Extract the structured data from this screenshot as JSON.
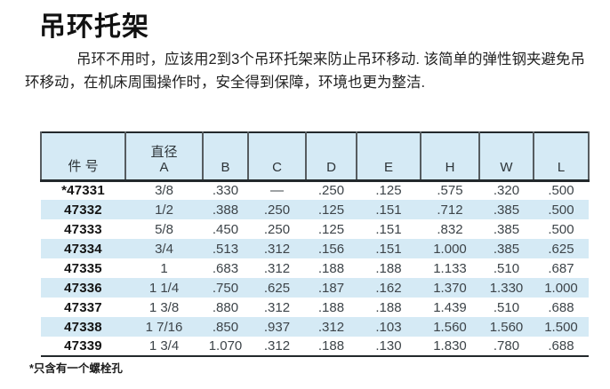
{
  "title": "吊环托架",
  "intro": {
    "lines": [
      "吊环不用时，应该用2到3个吊环托架来防止吊环移动. 该简单的弹性钢夹避免吊",
      "环移动，在机床周围操作时，安全得到保障，环境也更为整洁."
    ]
  },
  "table": {
    "headers": {
      "part": "件 号",
      "diameter_line1": "直径",
      "diameter_line2": "A",
      "letters": [
        "B",
        "C",
        "D",
        "E",
        "H",
        "W",
        "L"
      ]
    },
    "rows": [
      {
        "cells": [
          "*47331",
          "3/8",
          ".330",
          "—",
          ".250",
          ".125",
          ".575",
          ".320",
          ".500"
        ]
      },
      {
        "cells": [
          "47332",
          "1/2",
          ".388",
          ".250",
          ".125",
          ".151",
          ".712",
          ".385",
          ".500"
        ]
      },
      {
        "cells": [
          "47333",
          "5/8",
          ".450",
          ".250",
          ".125",
          ".151",
          ".832",
          ".385",
          ".500"
        ]
      },
      {
        "cells": [
          "47334",
          "3/4",
          ".513",
          ".312",
          ".156",
          ".151",
          "1.000",
          ".385",
          ".625"
        ]
      },
      {
        "cells": [
          "47335",
          "1",
          ".683",
          ".312",
          ".188",
          ".188",
          "1.133",
          ".510",
          ".687"
        ]
      },
      {
        "cells": [
          "47336",
          "1 1/4",
          ".750",
          ".625",
          ".187",
          ".162",
          "1.370",
          "1.330",
          "1.000"
        ]
      },
      {
        "cells": [
          "47337",
          "1 3/8",
          ".880",
          ".312",
          ".188",
          ".188",
          "1.439",
          ".510",
          ".688"
        ]
      },
      {
        "cells": [
          "47338",
          "1 7/16",
          ".850",
          ".937",
          ".312",
          ".103",
          "1.560",
          "1.560",
          "1.500"
        ]
      },
      {
        "cells": [
          "47339",
          "1 3/4",
          "1.070",
          ".312",
          ".188",
          ".130",
          "1.830",
          ".780",
          ".688"
        ]
      }
    ]
  },
  "footnote": "*只含有一个螺栓孔",
  "colors": {
    "table_fill": "#d5eaf5",
    "border_dark": "#23292c",
    "border_vertical": "#565c60",
    "value_text": "#3d4449"
  }
}
